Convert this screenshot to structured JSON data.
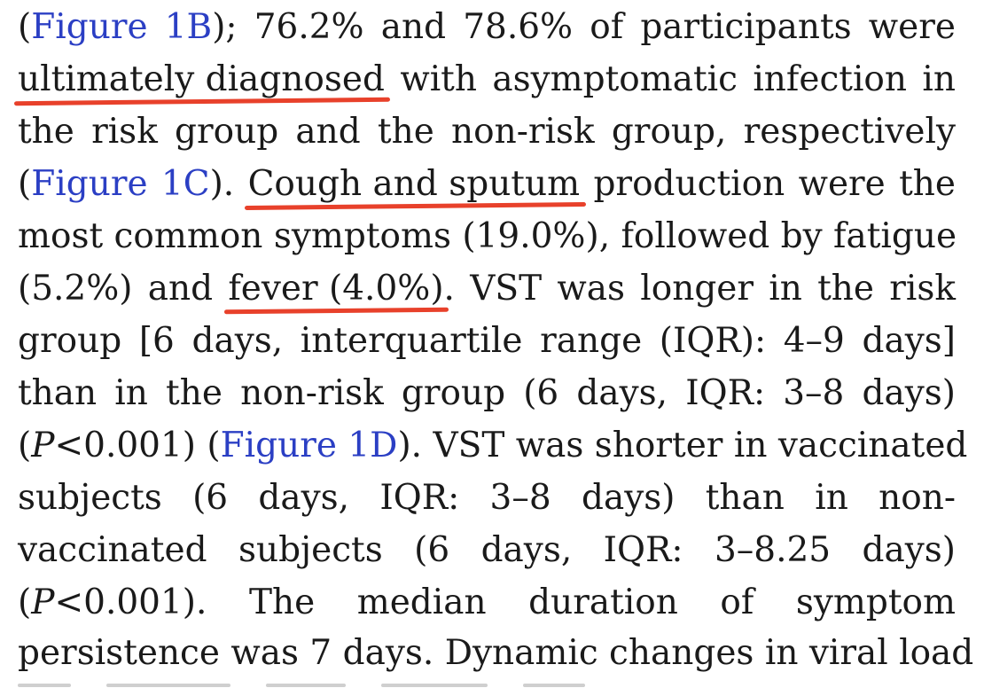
{
  "lines": [
    {
      "a": "(",
      "b": "Figure 1B",
      "c": "); 76.2% and 78.6% of participants were"
    },
    {
      "a": "ultimately diagnosed",
      "b": " with asymptomatic infection in"
    },
    {
      "a": "the risk group and the non-risk group, respectively"
    },
    {
      "a": "(",
      "b": "Figure 1C",
      "c": "). ",
      "d": "Cough and sputum",
      "e": " production were the"
    },
    {
      "a": "most common symptoms (19.0%), followed by fatigue"
    },
    {
      "a": "(5.2%) and ",
      "b": "fever (4.0%)",
      "c": ". VST was longer in the risk"
    },
    {
      "a": "group [6 days, interquartile range (IQR): 4–9 days]"
    },
    {
      "a": "than in the non-risk group (6 days, IQR: 3–8 days)"
    },
    {
      "a": "(",
      "b": "P",
      "c": "<0.001) (",
      "d": "Figure 1D",
      "e": "). VST was shorter in vaccinated"
    },
    {
      "a": "subjects (6 days, IQR: 3–8 days) than in non-"
    },
    {
      "a": "vaccinated subjects (6 days, IQR: 3–8.25 days)"
    },
    {
      "a": "(",
      "b": "P",
      "c": "<0.001). The median duration of symptom"
    },
    {
      "a": "persistence was 7 days. Dynamic changes in viral load"
    }
  ],
  "colors": {
    "text": "#1a1a1a",
    "link": "#2b3fc4",
    "underline_annotation": "#e8412b"
  }
}
